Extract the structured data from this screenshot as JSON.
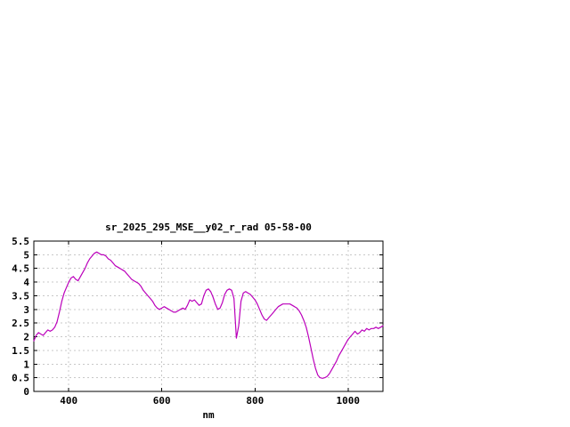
{
  "page": {
    "background_color": "#ffffff"
  },
  "chart_style": {
    "line_color": "#bb00bb",
    "border_color": "#000000",
    "grid_color": "#c8c8c8",
    "text_color": "#000000"
  },
  "chart_data": {
    "type": "line",
    "title": "sr_2025_295_MSE__y02_r_rad 05-58-00",
    "xlabel": "nm",
    "ylabel": "",
    "xlim": [
      325,
      1075
    ],
    "ylim": [
      0,
      5.5
    ],
    "x_ticks": [
      400,
      600,
      800,
      1000
    ],
    "y_ticks": [
      0,
      0.5,
      1,
      1.5,
      2,
      2.5,
      3,
      3.5,
      4,
      4.5,
      5,
      5.5
    ],
    "grid": true,
    "legend": false,
    "x_unit": "nm",
    "x_start": 325,
    "x_step": 5,
    "x_end": 1075,
    "y": [
      1.85,
      2.05,
      2.15,
      2.1,
      2.05,
      2.15,
      2.25,
      2.2,
      2.25,
      2.35,
      2.55,
      2.9,
      3.3,
      3.6,
      3.8,
      4.0,
      4.15,
      4.2,
      4.1,
      4.05,
      4.2,
      4.35,
      4.5,
      4.7,
      4.85,
      4.95,
      5.05,
      5.1,
      5.05,
      5.0,
      5.0,
      4.95,
      4.85,
      4.8,
      4.7,
      4.6,
      4.55,
      4.5,
      4.45,
      4.4,
      4.3,
      4.2,
      4.1,
      4.05,
      4.0,
      3.95,
      3.85,
      3.7,
      3.6,
      3.5,
      3.4,
      3.3,
      3.15,
      3.05,
      3.0,
      3.05,
      3.1,
      3.05,
      3.0,
      2.95,
      2.9,
      2.9,
      2.95,
      3.0,
      3.05,
      3.0,
      3.15,
      3.35,
      3.3,
      3.35,
      3.25,
      3.15,
      3.2,
      3.5,
      3.7,
      3.75,
      3.65,
      3.45,
      3.2,
      3.0,
      3.05,
      3.25,
      3.55,
      3.7,
      3.75,
      3.7,
      3.4,
      1.95,
      2.4,
      3.3,
      3.6,
      3.65,
      3.6,
      3.55,
      3.45,
      3.35,
      3.2,
      3.0,
      2.8,
      2.65,
      2.6,
      2.7,
      2.8,
      2.9,
      3.0,
      3.1,
      3.15,
      3.2,
      3.2,
      3.2,
      3.2,
      3.15,
      3.1,
      3.05,
      2.95,
      2.8,
      2.6,
      2.35,
      2.0,
      1.6,
      1.2,
      0.85,
      0.6,
      0.5,
      0.48,
      0.5,
      0.55,
      0.65,
      0.8,
      0.95,
      1.1,
      1.3,
      1.45,
      1.6,
      1.75,
      1.9,
      2.0,
      2.1,
      2.2,
      2.1,
      2.15,
      2.25,
      2.2,
      2.3,
      2.25,
      2.3,
      2.3,
      2.35,
      2.3,
      2.35,
      2.4
    ]
  }
}
